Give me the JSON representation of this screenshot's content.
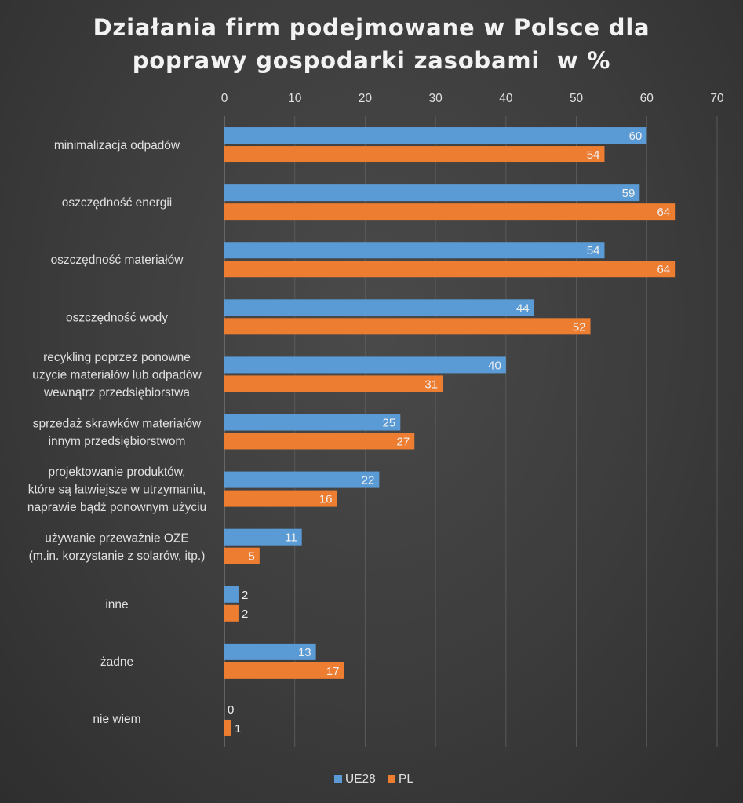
{
  "chart_data": {
    "type": "bar",
    "orientation": "horizontal",
    "title_lines": [
      "Działania firm podejmowane w Polsce dla",
      "poprawy gospodarki zasobami  w %"
    ],
    "categories": [
      [
        "minimalizacja odpadów"
      ],
      [
        "oszczędność energii"
      ],
      [
        "oszczędność materiałów"
      ],
      [
        "oszczędność wody"
      ],
      [
        "recykling poprzez ponowne",
        "użycie materiałów lub odpadów",
        "wewnątrz przedsiębiorstwa"
      ],
      [
        "sprzedaż skrawków materiałów",
        "innym przedsiębiorstwom"
      ],
      [
        "projektowanie produktów,",
        "które są łatwiejsze w utrzymaniu,",
        "naprawie bądź ponownym użyciu"
      ],
      [
        "używanie przeważnie OZE",
        "(m.in. korzystanie z solarów, itp.)"
      ],
      [
        "inne"
      ],
      [
        "żadne"
      ],
      [
        "nie wiem"
      ]
    ],
    "series": [
      {
        "name": "UE28",
        "color": "#5b9bd5",
        "values": [
          60,
          59,
          54,
          44,
          40,
          25,
          22,
          11,
          2,
          13,
          0
        ]
      },
      {
        "name": "PL",
        "color": "#ed7d31",
        "values": [
          54,
          64,
          64,
          52,
          31,
          27,
          16,
          5,
          2,
          17,
          1
        ]
      }
    ],
    "xlim": [
      0,
      70
    ],
    "xticks": [
      0,
      10,
      20,
      30,
      40,
      50,
      60,
      70
    ],
    "axis_position": "top",
    "grid": true,
    "legend_position": "bottom"
  }
}
